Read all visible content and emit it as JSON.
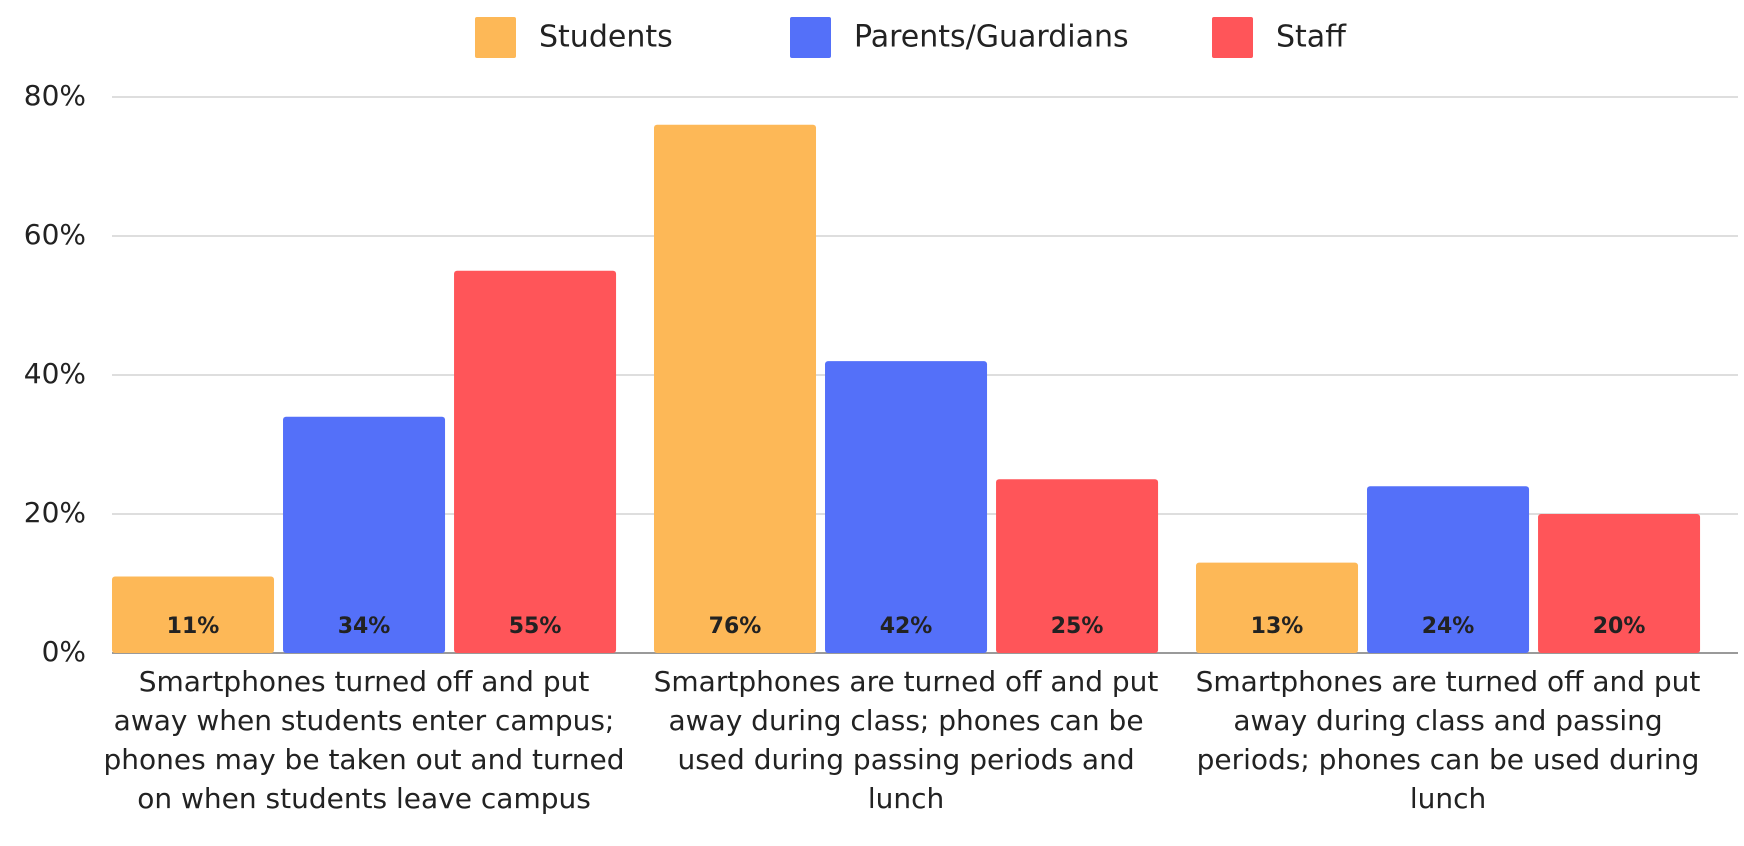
{
  "chart_data": {
    "type": "bar",
    "categories": [
      "Smartphones turned off and put away when students enter campus; phones may be taken out and turned on when students leave campus",
      "Smartphones are turned off and put away during class; phones can be used during passing periods and lunch",
      "Smartphones are turned off and put away during class and passing periods; phones can be used during lunch"
    ],
    "series": [
      {
        "name": "Students",
        "color": "#FDB857",
        "values": [
          11,
          76,
          13
        ],
        "value_labels": [
          "11%",
          "76%",
          "13%"
        ]
      },
      {
        "name": "Parents/Guardians",
        "color": "#5470F9",
        "values": [
          34,
          42,
          24
        ],
        "value_labels": [
          "34%",
          "42%",
          "24%"
        ]
      },
      {
        "name": "Staff",
        "color": "#FF5559",
        "values": [
          55,
          25,
          20
        ],
        "value_labels": [
          "55%",
          "25%",
          "20%"
        ]
      }
    ],
    "ylim": [
      0,
      80
    ],
    "yticks": [
      {
        "value": 0,
        "label": "0%"
      },
      {
        "value": 20,
        "label": "20%"
      },
      {
        "value": 40,
        "label": "40%"
      },
      {
        "value": 60,
        "label": "60%"
      },
      {
        "value": 80,
        "label": "80%"
      }
    ],
    "grid": true,
    "legend": "top"
  }
}
